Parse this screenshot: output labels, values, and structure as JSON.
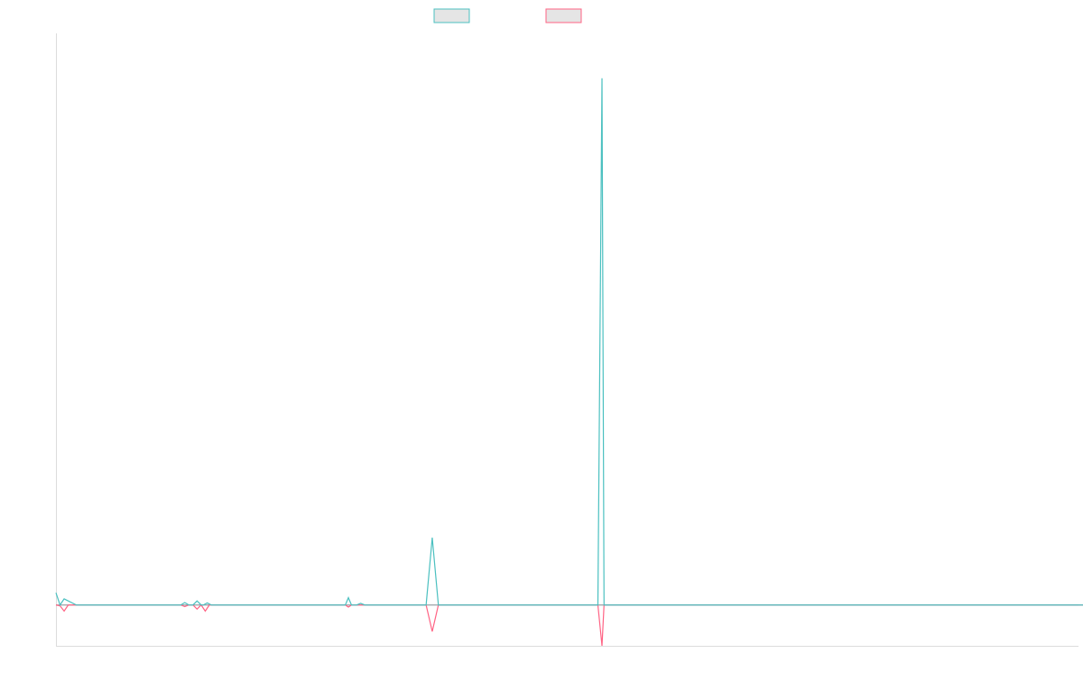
{
  "chart_data": {
    "type": "line",
    "title": "",
    "xlabel": "",
    "ylabel": "",
    "x_count": 101,
    "ylim": [
      -1,
      14
    ],
    "grid": false,
    "legend_position": "top-center",
    "series": [
      {
        "color": "#4bc0c0",
        "fill": "#e5e5e5",
        "points": [
          [
            0,
            0.3
          ],
          [
            0.4,
            0
          ],
          [
            0.8,
            0.15
          ],
          [
            2,
            0
          ],
          [
            12,
            0
          ],
          [
            12.2,
            0
          ],
          [
            12.6,
            0.06
          ],
          [
            13,
            0
          ],
          [
            13.4,
            0
          ],
          [
            13.8,
            0.1
          ],
          [
            14.2,
            0
          ],
          [
            14.4,
            0
          ],
          [
            14.8,
            0.05
          ],
          [
            15.2,
            0
          ],
          [
            16.2,
            0
          ],
          [
            16.6,
            0
          ],
          [
            17,
            0
          ],
          [
            18,
            0
          ],
          [
            28,
            0
          ],
          [
            28.3,
            0
          ],
          [
            28.6,
            0.18
          ],
          [
            28.9,
            0
          ],
          [
            29.4,
            0
          ],
          [
            29.8,
            0.04
          ],
          [
            30.2,
            0
          ],
          [
            35.4,
            0
          ],
          [
            36.2,
            0
          ],
          [
            36.8,
            1.65
          ],
          [
            37.4,
            0
          ],
          [
            40,
            0
          ],
          [
            48,
            0
          ],
          [
            52.4,
            0
          ],
          [
            53,
            0
          ],
          [
            53.4,
            12.9
          ],
          [
            53.6,
            0
          ],
          [
            56,
            0
          ],
          [
            101,
            0
          ]
        ]
      },
      {
        "color": "#ff6384",
        "fill": "#e5e5e5",
        "points": [
          [
            0,
            0
          ],
          [
            0.4,
            -0.02
          ],
          [
            0.8,
            -0.15
          ],
          [
            1.2,
            0
          ],
          [
            12,
            0
          ],
          [
            12.2,
            0
          ],
          [
            12.6,
            -0.04
          ],
          [
            13,
            0
          ],
          [
            13.4,
            0
          ],
          [
            13.8,
            -0.1
          ],
          [
            14.2,
            0
          ],
          [
            14.6,
            -0.15
          ],
          [
            15,
            0
          ],
          [
            15.6,
            0
          ],
          [
            16,
            0
          ],
          [
            28,
            0
          ],
          [
            28.3,
            0
          ],
          [
            28.6,
            -0.05
          ],
          [
            28.9,
            0
          ],
          [
            36.2,
            0
          ],
          [
            36.8,
            -0.65
          ],
          [
            37.4,
            0
          ],
          [
            53,
            0
          ],
          [
            53.4,
            -1.0
          ],
          [
            53.6,
            0
          ],
          [
            101,
            0
          ]
        ]
      }
    ]
  }
}
